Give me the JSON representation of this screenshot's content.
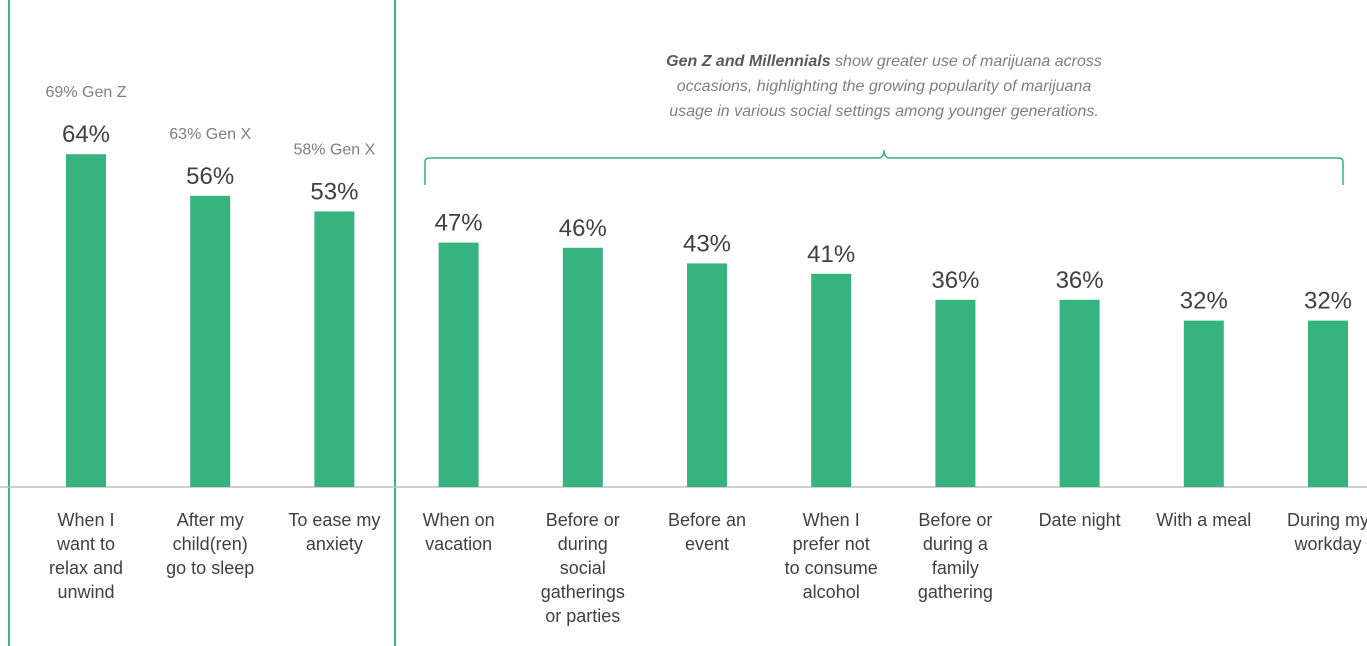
{
  "colors": {
    "bar": "#36b37e",
    "box": "#36b37e",
    "axis": "#bfbfbf",
    "text": "#404040",
    "note": "#7f7f7f"
  },
  "annotation": {
    "bold": "Gen Z and Millennials",
    "line1_rest": " show greater use of marijuana across",
    "line2": "occasions, highlighting the growing popularity of marijuana",
    "line3": "usage in various social settings among younger generations."
  },
  "chart_data": {
    "type": "bar",
    "ylim": [
      0,
      80
    ],
    "grid": false,
    "categories": [
      [
        "When I",
        "want to",
        "relax and",
        "unwind"
      ],
      [
        "After my",
        "child(ren)",
        "go to sleep"
      ],
      [
        "To ease my",
        "anxiety"
      ],
      [
        "When on",
        "vacation"
      ],
      [
        "Before or",
        "during",
        "social",
        "gatherings",
        "or parties"
      ],
      [
        "Before an",
        "event"
      ],
      [
        "When I",
        "prefer not",
        "to consume",
        "alcohol"
      ],
      [
        "Before or",
        "during a",
        "family",
        "gathering"
      ],
      [
        "Date night"
      ],
      [
        "With a meal"
      ],
      [
        "During my",
        "workday"
      ]
    ],
    "values": [
      64,
      56,
      53,
      47,
      46,
      43,
      41,
      36,
      36,
      32,
      32
    ],
    "value_labels": [
      "64%",
      "56%",
      "53%",
      "47%",
      "46%",
      "43%",
      "41%",
      "36%",
      "36%",
      "32%",
      "32%"
    ],
    "notes": [
      "69% Gen Z",
      "63% Gen X",
      "58% Gen X",
      "",
      "",
      "",
      "",
      "",
      "",
      "",
      ""
    ],
    "highlight_box_categories": 3
  }
}
